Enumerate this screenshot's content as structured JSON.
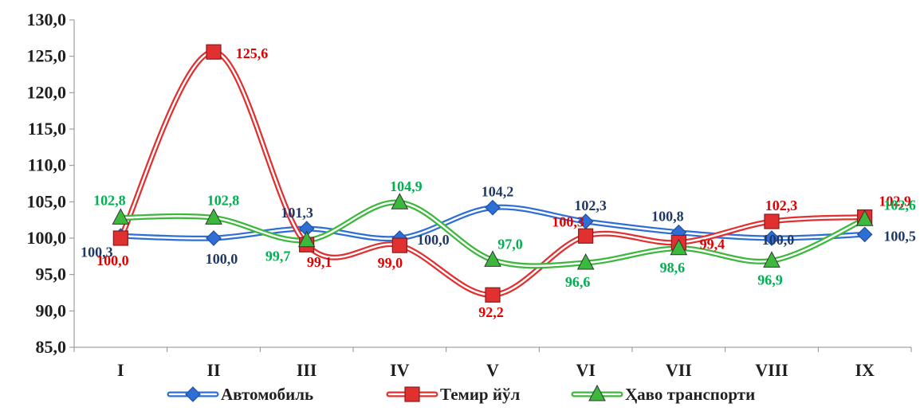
{
  "chart_data": {
    "type": "line",
    "smooth": true,
    "categories": [
      "I",
      "II",
      "III",
      "IV",
      "V",
      "VI",
      "VII",
      "VIII",
      "IX"
    ],
    "ylim": [
      85,
      130
    ],
    "yticks": [
      85,
      90,
      95,
      100,
      105,
      110,
      115,
      120,
      125,
      130
    ],
    "ytick_labels": [
      "85,0",
      "90,0",
      "95,0",
      "100,0",
      "105,0",
      "110,0",
      "115,0",
      "120,0",
      "125,0",
      "130,0"
    ],
    "grid": false,
    "legend_position": "bottom",
    "series": [
      {
        "name": "Автомобиль",
        "marker": "diamond",
        "color": "#2e6fd6",
        "label_color": "#1f3864",
        "values": [
          100.3,
          100.0,
          101.3,
          100.0,
          104.2,
          102.3,
          100.8,
          100.0,
          100.5
        ],
        "labels": [
          "100,3",
          "100,0",
          "101,3",
          "100,0",
          "104,2",
          "102,3",
          "100,8",
          "100,0",
          "100,5"
        ]
      },
      {
        "name": "Темир йўл",
        "marker": "square",
        "color": "#e03030",
        "label_color": "#e00000",
        "values": [
          100.0,
          125.6,
          99.1,
          99.0,
          92.2,
          100.3,
          99.4,
          102.3,
          102.9
        ],
        "labels": [
          "100,0",
          "125,6",
          "99,1",
          "99,0",
          "92,2",
          "100,3",
          "99,4",
          "102,3",
          "102,9"
        ]
      },
      {
        "name": "Ҳаво транспорти",
        "marker": "triangle",
        "color": "#3cb83c",
        "label_color": "#00b050",
        "values": [
          102.8,
          102.8,
          99.7,
          104.9,
          97.0,
          96.6,
          98.6,
          96.9,
          102.6
        ],
        "labels": [
          "102,8",
          "102,8",
          "99,7",
          "104,9",
          "97,0",
          "96,6",
          "98,6",
          "96,9",
          "102,6"
        ]
      }
    ]
  }
}
